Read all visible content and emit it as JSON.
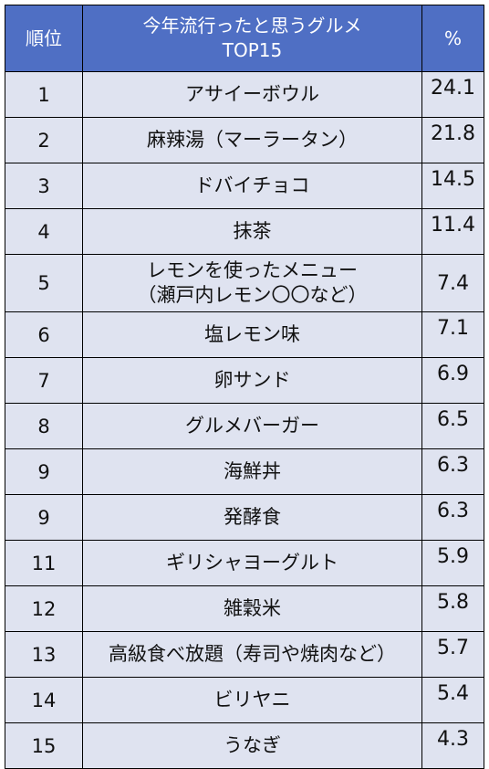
{
  "header": {
    "rank": "順位",
    "title_line1": "今年流行ったと思うグルメ",
    "title_line2": "TOP15",
    "percent": "%"
  },
  "rows": [
    {
      "rank": "1",
      "name": [
        "アサイーボウル"
      ],
      "percent": "24.1"
    },
    {
      "rank": "2",
      "name": [
        "麻辣湯（マーラータン）"
      ],
      "percent": "21.8"
    },
    {
      "rank": "3",
      "name": [
        "ドバイチョコ"
      ],
      "percent": "14.5"
    },
    {
      "rank": "4",
      "name": [
        "抹茶"
      ],
      "percent": "11.4"
    },
    {
      "rank": "5",
      "name": [
        "レモンを使ったメニュー",
        "（瀬戸内レモン〇〇など）"
      ],
      "percent": "7.4"
    },
    {
      "rank": "6",
      "name": [
        "塩レモン味"
      ],
      "percent": "7.1"
    },
    {
      "rank": "7",
      "name": [
        "卵サンド"
      ],
      "percent": "6.9"
    },
    {
      "rank": "8",
      "name": [
        "グルメバーガー"
      ],
      "percent": "6.5"
    },
    {
      "rank": "9",
      "name": [
        "海鮮丼"
      ],
      "percent": "6.3"
    },
    {
      "rank": "9",
      "name": [
        "発酵食"
      ],
      "percent": "6.3"
    },
    {
      "rank": "11",
      "name": [
        "ギリシャヨーグルト"
      ],
      "percent": "5.9"
    },
    {
      "rank": "12",
      "name": [
        "雑穀米"
      ],
      "percent": "5.8"
    },
    {
      "rank": "13",
      "name": [
        "高級食べ放題（寿司や焼肉など）"
      ],
      "percent": "5.7"
    },
    {
      "rank": "14",
      "name": [
        "ビリヤニ"
      ],
      "percent": "5.4"
    },
    {
      "rank": "15",
      "name": [
        "うなぎ"
      ],
      "percent": "4.3"
    }
  ],
  "colors": {
    "header_bg": "#4f6fc4",
    "row_bg": "#dfe3f0",
    "border": "#000000"
  }
}
